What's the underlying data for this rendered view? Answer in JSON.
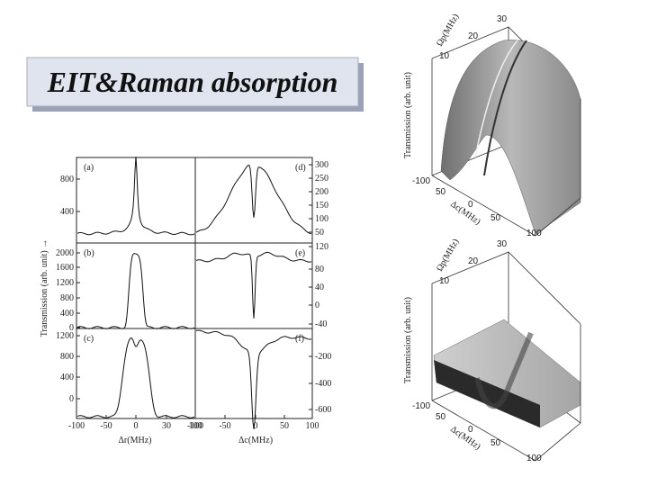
{
  "title": "EIT&Raman absorption",
  "figure": {
    "y_label": "Transmission (arb. unit)  →",
    "panels": [
      {
        "label": "(a)",
        "ticks": [
          800,
          400
        ]
      },
      {
        "label": "(d)",
        "ticks": [
          300,
          250,
          200,
          150,
          100,
          50
        ]
      },
      {
        "label": "(b)",
        "ticks": [
          2000,
          1600,
          1200,
          800,
          400,
          0
        ]
      },
      {
        "label": "(e)",
        "ticks": [
          120,
          80,
          40,
          0,
          -40
        ]
      },
      {
        "label": "(c)",
        "ticks": [
          1200,
          800,
          400,
          0
        ]
      },
      {
        "label": "(f)",
        "ticks": [
          -200,
          -400,
          -600
        ]
      }
    ],
    "x_axes": [
      {
        "label": "Δr(MHz)",
        "ticks": [
          -100,
          -50,
          0,
          30,
          100
        ]
      },
      {
        "label": "Δc(MHz)",
        "ticks": [
          -100,
          -50,
          0,
          50,
          100
        ]
      }
    ]
  },
  "plots3d": [
    {
      "z_label": "Transmission (arb. unit)",
      "y_label": "Ωp(MHz)",
      "y_ticks": [
        10,
        20,
        30
      ],
      "x_label": "Δc(MHz)",
      "x_ticks": [
        -100,
        50,
        0,
        50,
        100
      ]
    },
    {
      "z_label": "Transmission (arb. unit)",
      "y_label": "Ωp(MHz)",
      "y_ticks": [
        10,
        20,
        30
      ],
      "x_label": "Δc(MHz)",
      "x_ticks": [
        -100,
        50,
        0,
        50,
        100
      ]
    }
  ]
}
